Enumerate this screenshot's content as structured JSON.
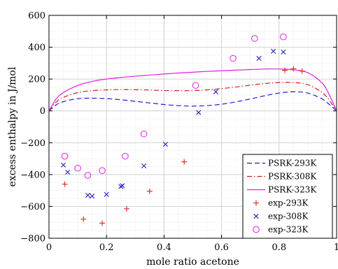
{
  "chart_data": {
    "type": "line",
    "title": "",
    "xlabel": "mole ratio acetone",
    "ylabel": "excess enthalpy in J/mol",
    "xlim": [
      0,
      1
    ],
    "ylim": [
      -800,
      600
    ],
    "xticks": [
      0,
      0.2,
      0.4,
      0.6,
      0.8,
      1
    ],
    "xtick_labels": [
      "0",
      "0.2",
      "0.4",
      "0.6",
      "0.8",
      "1"
    ],
    "yticks": [
      -800,
      -600,
      -400,
      -200,
      0,
      200,
      400,
      600
    ],
    "ytick_labels": [
      "−800",
      "−600",
      "−400",
      "−200",
      "0",
      "200",
      "400",
      "600"
    ],
    "grid": true,
    "legend_position": "bottom-right",
    "series": [
      {
        "name": "PSRK-293K",
        "kind": "line",
        "style": "dashed",
        "color": "#1f1fd0",
        "x": [
          0,
          0.025,
          0.05,
          0.1,
          0.15,
          0.2,
          0.25,
          0.3,
          0.35,
          0.4,
          0.45,
          0.5,
          0.55,
          0.6,
          0.65,
          0.7,
          0.75,
          0.8,
          0.85,
          0.9,
          0.95,
          0.975,
          1
        ],
        "y": [
          0,
          38,
          58,
          77,
          80,
          77,
          70,
          60,
          50,
          40,
          33,
          30,
          33,
          42,
          57,
          75,
          95,
          112,
          120,
          112,
          75,
          40,
          0
        ]
      },
      {
        "name": "PSRK-308K",
        "kind": "line",
        "style": "dashdot",
        "color": "#d01f1f",
        "x": [
          0,
          0.025,
          0.05,
          0.1,
          0.15,
          0.2,
          0.25,
          0.3,
          0.35,
          0.4,
          0.45,
          0.5,
          0.55,
          0.6,
          0.65,
          0.7,
          0.75,
          0.8,
          0.85,
          0.9,
          0.95,
          0.975,
          1
        ],
        "y": [
          0,
          55,
          85,
          115,
          127,
          132,
          134,
          133,
          131,
          128,
          127,
          128,
          132,
          140,
          150,
          162,
          172,
          178,
          178,
          165,
          115,
          65,
          0
        ]
      },
      {
        "name": "PSRK-323K",
        "kind": "line",
        "style": "solid",
        "color": "#e020e0",
        "x": [
          0,
          0.025,
          0.05,
          0.1,
          0.15,
          0.2,
          0.25,
          0.3,
          0.35,
          0.4,
          0.45,
          0.5,
          0.55,
          0.6,
          0.65,
          0.7,
          0.75,
          0.8,
          0.85,
          0.9,
          0.95,
          0.975,
          1
        ],
        "y": [
          0,
          75,
          115,
          160,
          185,
          200,
          210,
          218,
          225,
          232,
          238,
          243,
          248,
          252,
          256,
          260,
          263,
          263,
          258,
          240,
          175,
          100,
          0
        ]
      },
      {
        "name": "exp-293K",
        "kind": "scatter",
        "marker": "plus",
        "color": "#e02020",
        "x": [
          0.055,
          0.12,
          0.185,
          0.27,
          0.35,
          0.47,
          0.82,
          0.85,
          0.88
        ],
        "y": [
          -460,
          -680,
          -705,
          -615,
          -505,
          -320,
          255,
          265,
          250
        ]
      },
      {
        "name": "exp-308K",
        "kind": "scatter",
        "marker": "cross",
        "color": "#2020c0",
        "x": [
          0.05,
          0.065,
          0.135,
          0.15,
          0.2,
          0.25,
          0.255,
          0.33,
          0.405,
          0.52,
          0.58,
          0.73,
          0.78,
          0.815
        ],
        "y": [
          -340,
          -385,
          -530,
          -535,
          -525,
          -475,
          -470,
          -345,
          -210,
          -10,
          120,
          330,
          375,
          370
        ]
      },
      {
        "name": "exp-323K",
        "kind": "scatter",
        "marker": "circle",
        "color": "#e020e0",
        "x": [
          0.055,
          0.1,
          0.135,
          0.185,
          0.265,
          0.33,
          0.51,
          0.64,
          0.715,
          0.815
        ],
        "y": [
          -285,
          -360,
          -405,
          -375,
          -285,
          -145,
          160,
          330,
          455,
          465
        ]
      }
    ]
  }
}
